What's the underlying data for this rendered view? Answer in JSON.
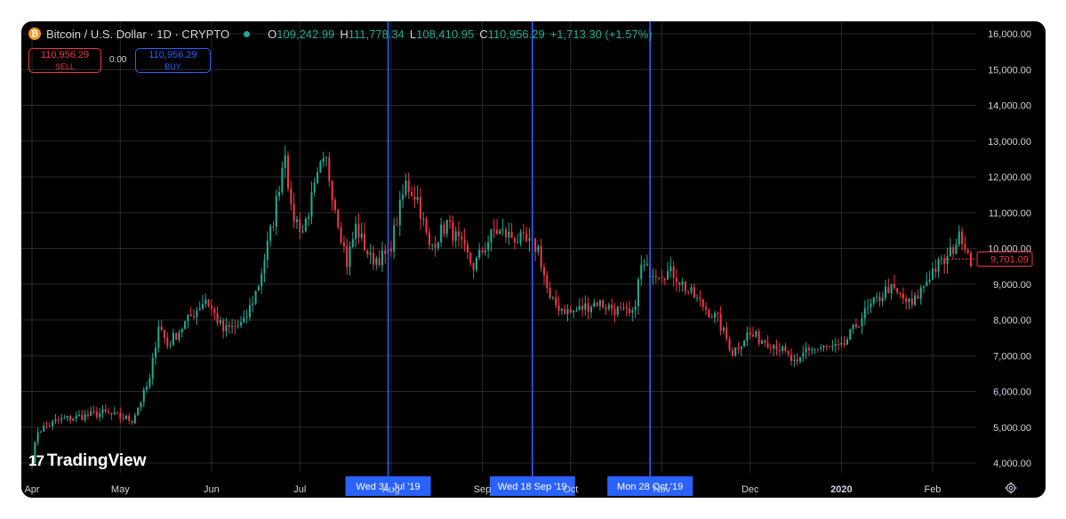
{
  "header": {
    "symbol_icon": "bitcoin-icon",
    "symbol_icon_char": "₿",
    "title": "Bitcoin / U.S. Dollar · 1D · CRYPTO",
    "open_label": "O",
    "open_value": "109,242.99",
    "high_label": "H",
    "high_value": "111,778.34",
    "low_label": "L",
    "low_value": "108,410.95",
    "close_label": "C",
    "close_value": "110,956.29",
    "change": "+1,713.30 (+1.57%)"
  },
  "trade": {
    "sell_price": "110,956.29",
    "sell_label": "SELL",
    "spread": "0.00",
    "buy_price": "110,956.29",
    "buy_label": "BUY"
  },
  "branding": {
    "logo_mark": "17",
    "logo_text": "TradingView"
  },
  "colors": {
    "up": "#22ab94",
    "down": "#f23645",
    "grid": "#2a2a2a",
    "marker": "#2962ff",
    "text": "#d1d4dc",
    "background": "#000000"
  },
  "chart_data": {
    "type": "candlestick",
    "y_axis": {
      "min": 3800,
      "max": 16150,
      "ticks": [
        4000,
        5000,
        6000,
        7000,
        8000,
        9000,
        10000,
        11000,
        12000,
        13000,
        14000,
        15000,
        16000
      ],
      "tick_labels": [
        "4,000.00",
        "5,000.00",
        "6,000.00",
        "7,000.00",
        "8,000.00",
        "9,000.00",
        "10,000.00",
        "11,000.00",
        "12,000.00",
        "13,000.00",
        "14,000.00",
        "15,000.00",
        "16,000.00"
      ]
    },
    "x_axis": {
      "start": "2019-04-01",
      "end": "2020-02-14",
      "ticks": [
        {
          "date": "2019-04-01",
          "label": "Apr",
          "bold": false
        },
        {
          "date": "2019-05-01",
          "label": "May",
          "bold": false
        },
        {
          "date": "2019-06-01",
          "label": "Jun",
          "bold": false
        },
        {
          "date": "2019-07-01",
          "label": "Jul",
          "bold": false
        },
        {
          "date": "2019-08-01",
          "label": "Aug",
          "bold": false
        },
        {
          "date": "2019-09-01",
          "label": "Sep",
          "bold": false
        },
        {
          "date": "2019-10-01",
          "label": "Oct",
          "bold": false
        },
        {
          "date": "2019-11-01",
          "label": "Nov",
          "bold": false
        },
        {
          "date": "2019-12-01",
          "label": "Dec",
          "bold": false
        },
        {
          "date": "2020-01-01",
          "label": "2020",
          "bold": true
        },
        {
          "date": "2020-02-01",
          "label": "Feb",
          "bold": false
        }
      ]
    },
    "vertical_markers": [
      {
        "date": "2019-07-31",
        "label": "Wed 31 Jul '19"
      },
      {
        "date": "2019-09-18",
        "label": "Wed 18 Sep '19"
      },
      {
        "date": "2019-10-28",
        "label": "Mon 28 Oct '19"
      }
    ],
    "last_price": {
      "value": 9701.09,
      "label": "9,701.09"
    },
    "anchors": [
      [
        "2019-04-01",
        4100
      ],
      [
        "2019-04-03",
        4900
      ],
      [
        "2019-04-10",
        5200
      ],
      [
        "2019-04-25",
        5400
      ],
      [
        "2019-05-05",
        5200
      ],
      [
        "2019-05-11",
        6300
      ],
      [
        "2019-05-14",
        7900
      ],
      [
        "2019-05-17",
        7300
      ],
      [
        "2019-05-22",
        7800
      ],
      [
        "2019-05-30",
        8600
      ],
      [
        "2019-06-05",
        7700
      ],
      [
        "2019-06-12",
        7900
      ],
      [
        "2019-06-17",
        9000
      ],
      [
        "2019-06-22",
        10800
      ],
      [
        "2019-06-26",
        12800
      ],
      [
        "2019-06-28",
        11000
      ],
      [
        "2019-07-02",
        10500
      ],
      [
        "2019-07-08",
        12200
      ],
      [
        "2019-07-10",
        12400
      ],
      [
        "2019-07-17",
        9600
      ],
      [
        "2019-07-20",
        10600
      ],
      [
        "2019-07-25",
        9700
      ],
      [
        "2019-07-31",
        9800
      ],
      [
        "2019-08-06",
        11800
      ],
      [
        "2019-08-10",
        11400
      ],
      [
        "2019-08-14",
        10000
      ],
      [
        "2019-08-20",
        10700
      ],
      [
        "2019-08-29",
        9500
      ],
      [
        "2019-09-05",
        10500
      ],
      [
        "2019-09-12",
        10300
      ],
      [
        "2019-09-20",
        10000
      ],
      [
        "2019-09-24",
        8500
      ],
      [
        "2019-10-01",
        8200
      ],
      [
        "2019-10-10",
        8500
      ],
      [
        "2019-10-22",
        8100
      ],
      [
        "2019-10-25",
        9500
      ],
      [
        "2019-10-27",
        9400
      ],
      [
        "2019-11-05",
        9300
      ],
      [
        "2019-11-10",
        8800
      ],
      [
        "2019-11-20",
        8000
      ],
      [
        "2019-11-25",
        7100
      ],
      [
        "2019-11-30",
        7600
      ],
      [
        "2019-12-10",
        7300
      ],
      [
        "2019-12-17",
        6700
      ],
      [
        "2019-12-20",
        7200
      ],
      [
        "2020-01-01",
        7200
      ],
      [
        "2020-01-08",
        8100
      ],
      [
        "2020-01-17",
        8900
      ],
      [
        "2020-01-25",
        8400
      ],
      [
        "2020-02-01",
        9400
      ],
      [
        "2020-02-06",
        9700
      ],
      [
        "2020-02-09",
        10200
      ],
      [
        "2020-02-11",
        10350
      ],
      [
        "2020-02-14",
        9701
      ]
    ]
  }
}
